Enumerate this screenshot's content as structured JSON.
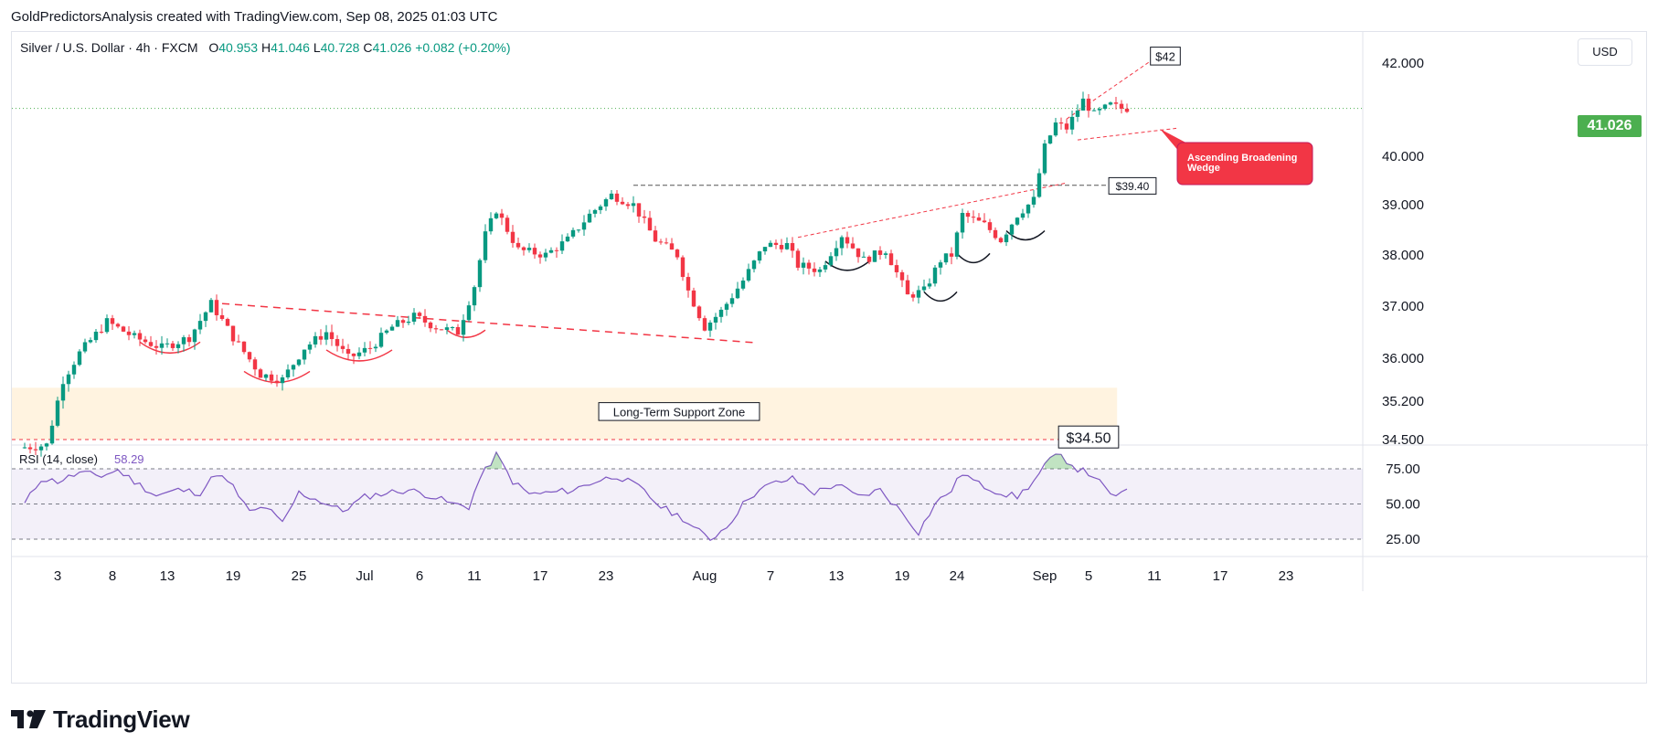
{
  "header": {
    "attribution": "GoldPredictorsAnalysis created with TradingView.com, Sep 08, 2025 01:03 UTC"
  },
  "legend": {
    "symbol": "Silver / U.S. Dollar · 4h · FXCM",
    "o_label": "O",
    "o": "40.953",
    "h_label": "H",
    "h": "41.046",
    "l_label": "L",
    "l": "40.728",
    "c_label": "C",
    "c": "41.026",
    "change": "+0.082 (+0.20%)"
  },
  "currency": "USD",
  "last_price": "41.026",
  "colors": {
    "up": "#089981",
    "down": "#f23645",
    "rsi": "#7e57c2",
    "support_zone": "#fff3e0",
    "annotation": "#f23645",
    "wedge_box": "#f23645",
    "last_price": "#4caf50"
  },
  "annotations": {
    "support_zone_label": "Long-Term Support Zone",
    "support_price_label": "$34.50",
    "resistance_label": "$39.40",
    "target_label": "$42",
    "wedge_label_line1": "Ascending Broadening",
    "wedge_label_line2": "Wedge"
  },
  "rsi_panel": {
    "label": "RSI (14, close)",
    "value": "58.29",
    "levels": [
      75,
      50,
      25
    ],
    "level_labels": [
      "75.00",
      "50.00",
      "25.00"
    ]
  },
  "brand": {
    "name": "TradingView",
    "icon": "tradingview-logo-icon"
  },
  "chart_data": {
    "type": "candlestick",
    "symbol": "Silver / U.S. Dollar",
    "interval": "4h",
    "y_ticks": [
      42.0,
      40.0,
      39.0,
      38.0,
      37.0,
      36.0,
      35.2,
      34.5
    ],
    "y_tick_labels": [
      "42.000",
      "40.000",
      "39.000",
      "38.000",
      "37.000",
      "36.000",
      "35.200",
      "34.500"
    ],
    "x_tick_labels": [
      "3",
      "8",
      "13",
      "19",
      "25",
      "Jul",
      "6",
      "11",
      "17",
      "23",
      "Aug",
      "7",
      "13",
      "19",
      "24",
      "Sep",
      "5",
      "11",
      "17",
      "23"
    ],
    "x_tick_days": [
      3,
      8,
      13,
      19,
      25,
      31,
      36,
      41,
      47,
      53,
      62,
      68,
      74,
      80,
      85,
      93,
      97,
      103,
      109,
      115
    ],
    "price_path": [
      [
        0,
        34.35
      ],
      [
        2.5,
        34.4
      ],
      [
        4.0,
        35.6
      ],
      [
        5.5,
        36.1
      ],
      [
        8.0,
        36.7
      ],
      [
        10.5,
        36.4
      ],
      [
        13.0,
        36.2
      ],
      [
        15.5,
        36.4
      ],
      [
        17.5,
        37.05
      ],
      [
        19.5,
        36.4
      ],
      [
        22.0,
        35.7
      ],
      [
        24.0,
        35.6
      ],
      [
        26.0,
        36.2
      ],
      [
        28.0,
        36.5
      ],
      [
        30.0,
        36.0
      ],
      [
        32.0,
        36.2
      ],
      [
        34.0,
        36.6
      ],
      [
        36.0,
        36.8
      ],
      [
        38.0,
        36.6
      ],
      [
        40.0,
        36.5
      ],
      [
        41.5,
        37.4
      ],
      [
        42.5,
        38.4
      ],
      [
        43.5,
        38.9
      ],
      [
        45.5,
        38.1
      ],
      [
        48.0,
        38.0
      ],
      [
        50.0,
        38.3
      ],
      [
        52.0,
        38.8
      ],
      [
        54.0,
        39.2
      ],
      [
        56.0,
        39.0
      ],
      [
        58.0,
        38.3
      ],
      [
        60.0,
        38.0
      ],
      [
        61.0,
        37.3
      ],
      [
        62.5,
        36.6
      ],
      [
        64.0,
        36.9
      ],
      [
        66.0,
        37.5
      ],
      [
        68.0,
        38.2
      ],
      [
        70.0,
        38.2
      ],
      [
        71.0,
        37.8
      ],
      [
        73.0,
        37.7
      ],
      [
        75.0,
        38.4
      ],
      [
        77.0,
        37.9
      ],
      [
        79.0,
        38.1
      ],
      [
        81.0,
        37.2
      ],
      [
        82.5,
        37.3
      ],
      [
        84.0,
        37.9
      ],
      [
        85.0,
        38.0
      ],
      [
        86.0,
        38.8
      ],
      [
        88.0,
        38.6
      ],
      [
        89.5,
        38.3
      ],
      [
        91.0,
        38.8
      ],
      [
        92.5,
        39.1
      ],
      [
        93.5,
        40.2
      ],
      [
        94.5,
        40.7
      ],
      [
        95.5,
        40.6
      ],
      [
        97.0,
        41.2
      ],
      [
        98.0,
        40.9
      ],
      [
        99.5,
        41.1
      ],
      [
        100.5,
        41.026
      ]
    ],
    "rsi_path": [
      [
        0,
        50
      ],
      [
        1.5,
        68
      ],
      [
        3,
        66
      ],
      [
        5,
        72
      ],
      [
        7,
        70
      ],
      [
        8.5,
        74
      ],
      [
        10,
        66
      ],
      [
        12,
        56
      ],
      [
        14,
        60
      ],
      [
        16,
        58
      ],
      [
        17.5,
        72
      ],
      [
        19,
        62
      ],
      [
        20.5,
        44
      ],
      [
        22,
        48
      ],
      [
        23.5,
        36
      ],
      [
        25,
        58
      ],
      [
        27,
        52
      ],
      [
        29,
        45
      ],
      [
        31,
        55
      ],
      [
        33,
        58
      ],
      [
        35,
        60
      ],
      [
        37,
        56
      ],
      [
        39,
        50
      ],
      [
        40.5,
        48
      ],
      [
        41.5,
        68
      ],
      [
        43,
        85
      ],
      [
        44.5,
        66
      ],
      [
        46,
        57
      ],
      [
        48,
        58
      ],
      [
        50,
        60
      ],
      [
        52,
        66
      ],
      [
        54,
        70
      ],
      [
        56,
        62
      ],
      [
        58,
        48
      ],
      [
        60,
        40
      ],
      [
        61,
        33
      ],
      [
        62.5,
        25
      ],
      [
        64,
        34
      ],
      [
        66,
        55
      ],
      [
        68,
        64
      ],
      [
        70,
        68
      ],
      [
        72,
        58
      ],
      [
        74,
        64
      ],
      [
        76,
        55
      ],
      [
        78,
        60
      ],
      [
        80,
        44
      ],
      [
        81.5,
        30
      ],
      [
        83,
        50
      ],
      [
        84.5,
        60
      ],
      [
        85.5,
        72
      ],
      [
        87,
        64
      ],
      [
        89,
        58
      ],
      [
        90.5,
        55
      ],
      [
        92,
        66
      ],
      [
        93.5,
        82
      ],
      [
        94.5,
        84
      ],
      [
        96,
        75
      ],
      [
        97.5,
        70
      ],
      [
        99,
        56
      ],
      [
        100.5,
        58.29
      ]
    ],
    "support_zone": [
      34.5,
      35.45
    ],
    "support_level": 34.5,
    "resistance_level": 39.4,
    "target_level": 42.0
  }
}
